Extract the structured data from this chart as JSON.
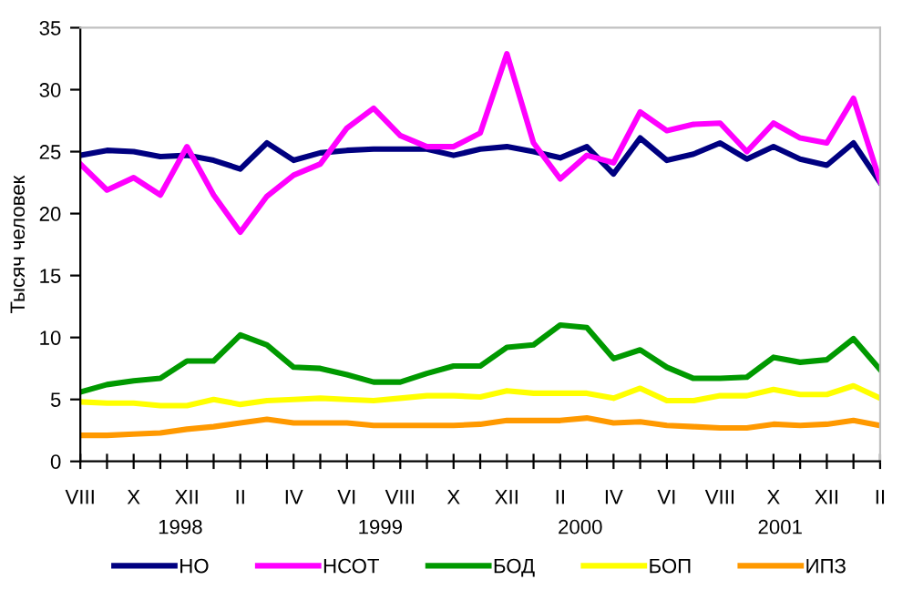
{
  "chart_data": {
    "type": "line",
    "ylabel": "Тысяч человек",
    "categories": [
      "VIII",
      null,
      "X",
      null,
      "XII",
      null,
      "II",
      null,
      "IV",
      null,
      "VI",
      null,
      "VIII",
      null,
      "X",
      null,
      "XII",
      null,
      "II",
      null,
      "IV",
      null,
      "VI",
      null,
      "VIII",
      null,
      "X",
      null,
      "XII",
      null,
      "II"
    ],
    "ylim": [
      0,
      35
    ],
    "yticks": [
      0,
      5,
      10,
      15,
      20,
      25,
      30,
      35
    ],
    "grid": false,
    "legend": "bottom",
    "marker": "none",
    "line_style": "solid",
    "annotations": [
      "1998",
      "1999",
      "2000",
      "2001"
    ],
    "series": [
      {
        "name": "НО",
        "color": "#000080",
        "values": [
          24.7,
          25.1,
          25.0,
          24.6,
          24.7,
          24.3,
          23.6,
          25.7,
          24.3,
          24.9,
          25.1,
          25.2,
          25.2,
          25.2,
          24.7,
          25.2,
          25.4,
          25.0,
          24.5,
          25.4,
          23.2,
          26.1,
          24.3,
          24.8,
          25.7,
          24.4,
          25.4,
          24.4,
          23.9,
          25.7,
          22.5
        ]
      },
      {
        "name": "НСОТ",
        "color": "#ff00ff",
        "values": [
          24.0,
          21.9,
          22.9,
          21.5,
          25.4,
          21.5,
          18.5,
          21.4,
          23.1,
          24.0,
          26.9,
          28.5,
          26.3,
          25.4,
          25.4,
          26.5,
          32.9,
          25.7,
          22.8,
          24.7,
          24.1,
          28.2,
          26.7,
          27.2,
          27.3,
          25.0,
          27.3,
          26.1,
          25.7,
          29.3,
          22.6
        ]
      },
      {
        "name": "БОД",
        "color": "#009900",
        "values": [
          5.6,
          6.2,
          6.5,
          6.7,
          8.1,
          8.1,
          10.2,
          9.4,
          7.6,
          7.5,
          7.0,
          6.4,
          6.4,
          7.1,
          7.7,
          7.7,
          9.2,
          9.4,
          11.0,
          10.8,
          8.3,
          9.0,
          7.6,
          6.7,
          6.7,
          6.8,
          8.4,
          8.0,
          8.2,
          9.9,
          7.4
        ]
      },
      {
        "name": "БОП",
        "color": "#ffff00",
        "values": [
          4.8,
          4.7,
          4.7,
          4.5,
          4.5,
          5.0,
          4.6,
          4.9,
          5.0,
          5.1,
          5.0,
          4.9,
          5.1,
          5.3,
          5.3,
          5.2,
          5.7,
          5.5,
          5.5,
          5.5,
          5.1,
          5.9,
          4.9,
          4.9,
          5.3,
          5.3,
          5.8,
          5.4,
          5.4,
          6.1,
          5.1
        ]
      },
      {
        "name": "ИПЗ",
        "color": "#ff9900",
        "values": [
          2.1,
          2.1,
          2.2,
          2.3,
          2.6,
          2.8,
          3.1,
          3.4,
          3.1,
          3.1,
          3.1,
          2.9,
          2.9,
          2.9,
          2.9,
          3.0,
          3.3,
          3.3,
          3.3,
          3.5,
          3.1,
          3.2,
          2.9,
          2.8,
          2.7,
          2.7,
          3.0,
          2.9,
          3.0,
          3.3,
          2.9
        ]
      }
    ]
  }
}
